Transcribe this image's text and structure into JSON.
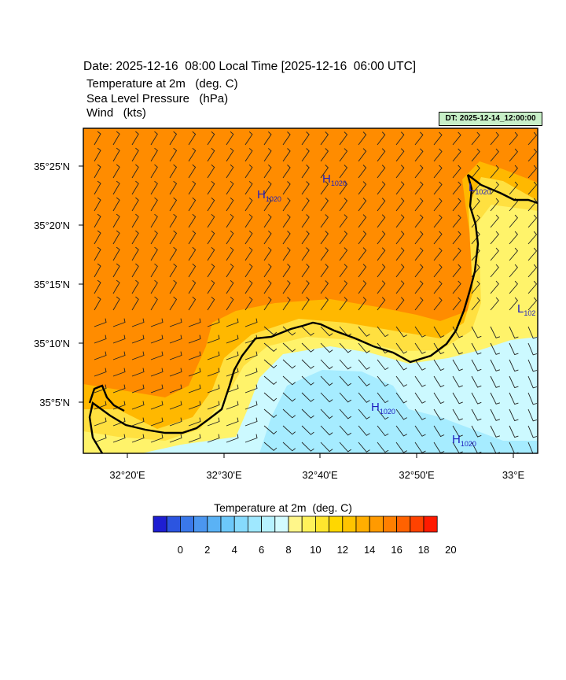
{
  "header": {
    "date_line": "Date: 2025-12-16  08:00 Local Time [2025-12-16  06:00 UTC]",
    "variables": [
      "Temperature at 2m   (deg. C)",
      "Sea Level Pressure   (hPa)",
      "Wind   (kts)"
    ],
    "dt_badge": "DT: 2025-12-14_12:00:00"
  },
  "map": {
    "lat_ticks": [
      "35°25'N",
      "35°20'N",
      "35°15'N",
      "35°10'N",
      "35°5'N"
    ],
    "lon_ticks": [
      "32°20'E",
      "32°30'E",
      "32°40'E",
      "32°50'E",
      "33°E"
    ],
    "pressure_centers": [
      {
        "type": "H",
        "value": "1020"
      },
      {
        "type": "H",
        "value": "1020"
      },
      {
        "type": "L",
        "value": "1020"
      },
      {
        "type": "L",
        "value": "102"
      },
      {
        "type": "H",
        "value": "1020"
      },
      {
        "type": "H",
        "value": "1020"
      }
    ],
    "colors": {
      "warm": "#ff8c00",
      "mild": "#ffb800",
      "lightwarm": "#ffe040",
      "yellow": "#fff36a",
      "cool": "#ccf9ff",
      "cool2": "#a6ecff",
      "coastline": "#000000",
      "pressure_label": "#2020c0"
    }
  },
  "colorbar": {
    "title": "Temperature at 2m  (deg. C)",
    "tick_labels": [
      "0",
      "2",
      "4",
      "6",
      "8",
      "10",
      "12",
      "14",
      "16",
      "18",
      "20"
    ],
    "colors": [
      "#1e1ed2",
      "#2c55e0",
      "#3a78ea",
      "#4b96f0",
      "#5ab2f5",
      "#6cc8fa",
      "#86dafd",
      "#9fe8ff",
      "#b6f2ff",
      "#d2fbff",
      "#fff68a",
      "#fff25a",
      "#ffe62e",
      "#ffd700",
      "#ffc400",
      "#ffae00",
      "#ff9a00",
      "#ff7f00",
      "#ff6200",
      "#ff4200",
      "#ff1a00"
    ]
  }
}
